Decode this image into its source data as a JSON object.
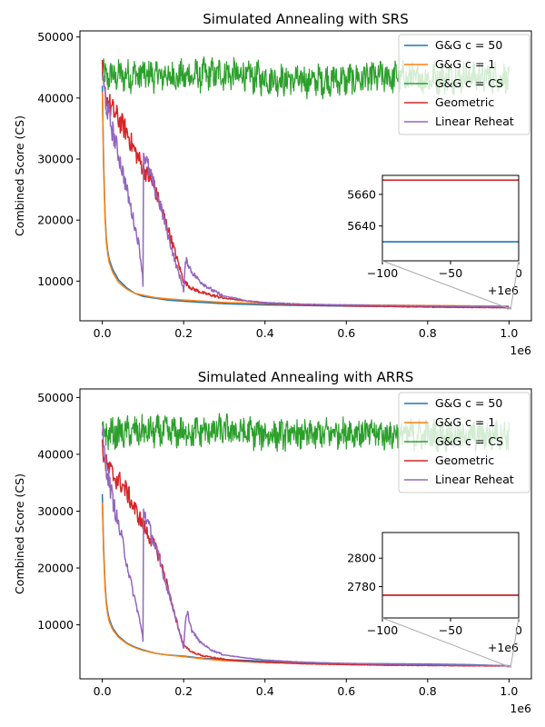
{
  "colors": {
    "gg50": "#1f77b4",
    "gg1": "#ff7f0e",
    "ggcs": "#2ca02c",
    "geometric": "#d62728",
    "linear_reheat": "#9467bd"
  },
  "chart_data": [
    {
      "type": "line",
      "title": "Simulated Annealing with SRS",
      "xlabel": "",
      "ylabel": "Combined Score (CS)",
      "x_offset_label": "1e6",
      "xlim": [
        -0.055,
        1.055
      ],
      "ylim": [
        3500,
        51000
      ],
      "xticks": [
        0.0,
        0.2,
        0.4,
        0.6,
        0.8,
        1.0
      ],
      "xtick_labels": [
        "0.0",
        "0.2",
        "0.4",
        "0.6",
        "0.8",
        "1.0"
      ],
      "yticks": [
        10000,
        20000,
        30000,
        40000,
        50000
      ],
      "ytick_labels": [
        "10000",
        "20000",
        "30000",
        "40000",
        "50000"
      ],
      "legend": {
        "placement": "top-right",
        "entries": [
          "G&G c = 50",
          "G&G c = 1",
          "G&G c = CS",
          "Geometric",
          "Linear Reheat"
        ]
      },
      "series": [
        {
          "name": "G&G c = 50",
          "x": [
            0.0,
            0.003,
            0.008,
            0.015,
            0.025,
            0.04,
            0.06,
            0.08,
            0.1,
            0.13,
            0.16,
            0.2,
            0.25,
            0.3,
            0.4,
            0.5,
            0.6,
            0.7,
            0.8,
            0.9,
            1.0
          ],
          "y": [
            42000,
            30000,
            18000,
            14000,
            12000,
            10200,
            8900,
            8000,
            7500,
            7200,
            6900,
            6700,
            6500,
            6300,
            6100,
            6000,
            5900,
            5850,
            5800,
            5750,
            5630
          ]
        },
        {
          "name": "G&G c = 1",
          "x": [
            0.0,
            0.003,
            0.008,
            0.015,
            0.025,
            0.04,
            0.06,
            0.08,
            0.1,
            0.13,
            0.16,
            0.2,
            0.25,
            0.3,
            0.4,
            0.5,
            0.6,
            0.7,
            0.8,
            0.9,
            1.0
          ],
          "y": [
            41000,
            29000,
            17500,
            13500,
            11500,
            9800,
            8700,
            8000,
            7700,
            7300,
            7100,
            6900,
            6700,
            6500,
            6300,
            6150,
            6100,
            6050,
            6000,
            5950,
            5900
          ]
        },
        {
          "name": "G&G c = CS",
          "x": [
            0.0,
            0.1,
            0.2,
            0.3,
            0.4,
            0.5,
            0.6,
            0.7,
            0.8,
            0.9,
            1.0
          ],
          "y": [
            43500,
            43800,
            43500,
            44000,
            43200,
            42800,
            43000,
            43500,
            43200,
            43600,
            43200
          ],
          "band": 3200
        },
        {
          "name": "Geometric",
          "x": [
            0.0,
            0.003,
            0.01,
            0.02,
            0.03,
            0.045,
            0.06,
            0.075,
            0.09,
            0.1,
            0.12,
            0.14,
            0.16,
            0.18,
            0.2,
            0.22,
            0.25,
            0.3,
            0.35,
            0.4,
            0.5,
            0.6,
            0.7,
            0.8,
            0.9,
            1.0
          ],
          "y": [
            44000,
            41000,
            40000,
            38500,
            37500,
            36000,
            34500,
            32000,
            30000,
            28500,
            26500,
            23000,
            19000,
            14500,
            10000,
            8800,
            8000,
            7200,
            6800,
            6400,
            6100,
            5950,
            5850,
            5750,
            5700,
            5660
          ]
        },
        {
          "name": "Linear Reheat",
          "x": [
            0.0,
            0.003,
            0.01,
            0.02,
            0.035,
            0.05,
            0.07,
            0.09,
            0.099,
            0.1,
            0.101,
            0.105,
            0.12,
            0.14,
            0.16,
            0.18,
            0.199,
            0.2,
            0.205,
            0.21,
            0.22,
            0.24,
            0.27,
            0.3,
            0.33,
            0.35,
            0.4,
            0.5,
            0.6,
            0.7,
            0.8,
            0.9,
            1.0
          ],
          "y": [
            45000,
            42000,
            39000,
            36000,
            32000,
            28000,
            22000,
            16000,
            11000,
            9500,
            31000,
            30500,
            27000,
            23000,
            18000,
            13000,
            9000,
            8200,
            13500,
            13000,
            11500,
            10000,
            8500,
            7500,
            7200,
            6800,
            6500,
            6200,
            6100,
            6000,
            5950,
            5850,
            5800
          ]
        }
      ],
      "inset": {
        "xlim": [
          -100,
          0
        ],
        "ylim": [
          5618,
          5672
        ],
        "xticks": [
          -100,
          -50,
          0
        ],
        "xtick_labels": [
          "−100",
          "−50",
          "0"
        ],
        "yticks": [
          5640,
          5660
        ],
        "ytick_labels": [
          "5640",
          "5660"
        ],
        "x_offset_label": "+1e6",
        "lines": [
          {
            "series": "G&G c = 50",
            "y": 5630
          },
          {
            "series": "Geometric",
            "y": 5669
          }
        ]
      }
    },
    {
      "type": "line",
      "title": "Simulated Annealing with ARRS",
      "xlabel": "",
      "ylabel": "Combined Score (CS)",
      "x_offset_label": "1e6",
      "xlim": [
        -0.055,
        1.055
      ],
      "ylim": [
        500,
        51500
      ],
      "xticks": [
        0.0,
        0.2,
        0.4,
        0.6,
        0.8,
        1.0
      ],
      "xtick_labels": [
        "0.0",
        "0.2",
        "0.4",
        "0.6",
        "0.8",
        "1.0"
      ],
      "yticks": [
        10000,
        20000,
        30000,
        40000,
        50000
      ],
      "ytick_labels": [
        "10000",
        "20000",
        "30000",
        "40000",
        "50000"
      ],
      "legend": {
        "placement": "top-right",
        "entries": [
          "G&G c = 50",
          "G&G c = 1",
          "G&G c = CS",
          "Geometric",
          "Linear Reheat"
        ]
      },
      "series": [
        {
          "name": "G&G c = 50",
          "x": [
            0.0,
            0.003,
            0.008,
            0.015,
            0.025,
            0.04,
            0.06,
            0.08,
            0.1,
            0.13,
            0.16,
            0.2,
            0.25,
            0.3,
            0.4,
            0.5,
            0.6,
            0.7,
            0.8,
            0.9,
            1.0
          ],
          "y": [
            33000,
            24000,
            15000,
            11500,
            9500,
            8000,
            6800,
            6100,
            5600,
            5000,
            4700,
            4500,
            4100,
            3900,
            3600,
            3400,
            3200,
            3150,
            3100,
            3000,
            2774
          ]
        },
        {
          "name": "G&G c = 1",
          "x": [
            0.0,
            0.003,
            0.008,
            0.015,
            0.025,
            0.04,
            0.06,
            0.08,
            0.1,
            0.13,
            0.16,
            0.2,
            0.25,
            0.3,
            0.4,
            0.5,
            0.6,
            0.7,
            0.8,
            0.9,
            1.0
          ],
          "y": [
            31500,
            23000,
            14500,
            11000,
            9200,
            7800,
            6700,
            6000,
            5500,
            5000,
            4700,
            4400,
            4000,
            3700,
            3400,
            3200,
            3000,
            2950,
            2900,
            2850,
            2780
          ]
        },
        {
          "name": "G&G c = CS",
          "x": [
            0.0,
            0.1,
            0.2,
            0.3,
            0.4,
            0.5,
            0.6,
            0.7,
            0.8,
            0.9,
            1.0
          ],
          "y": [
            43500,
            44000,
            43800,
            44200,
            43500,
            43300,
            44000,
            43500,
            43400,
            43200,
            43500
          ],
          "band": 3300
        },
        {
          "name": "Geometric",
          "x": [
            0.0,
            0.003,
            0.01,
            0.02,
            0.03,
            0.045,
            0.06,
            0.075,
            0.09,
            0.1,
            0.12,
            0.14,
            0.16,
            0.18,
            0.2,
            0.22,
            0.25,
            0.3,
            0.35,
            0.4,
            0.5,
            0.6,
            0.7,
            0.8,
            0.9,
            1.0
          ],
          "y": [
            43000,
            40000,
            38000,
            37000,
            36000,
            35000,
            33500,
            31000,
            29000,
            27500,
            25000,
            22000,
            17000,
            11000,
            6500,
            5200,
            4500,
            3900,
            3600,
            3400,
            3150,
            3000,
            2900,
            2850,
            2800,
            2774
          ]
        },
        {
          "name": "Linear Reheat",
          "x": [
            0.0,
            0.003,
            0.01,
            0.02,
            0.035,
            0.05,
            0.07,
            0.09,
            0.099,
            0.1,
            0.101,
            0.105,
            0.12,
            0.14,
            0.16,
            0.18,
            0.199,
            0.2,
            0.205,
            0.21,
            0.22,
            0.24,
            0.27,
            0.3,
            0.33,
            0.35,
            0.4,
            0.5,
            0.6,
            0.7,
            0.8,
            0.9,
            1.0
          ],
          "y": [
            44000,
            41000,
            38000,
            34000,
            29000,
            24500,
            17500,
            11500,
            8000,
            7200,
            30000,
            29500,
            26000,
            21500,
            16500,
            11500,
            6200,
            5800,
            11000,
            12000,
            9000,
            7000,
            5500,
            4700,
            4400,
            4200,
            3800,
            3400,
            3200,
            3100,
            3000,
            2900,
            2800
          ]
        }
      ],
      "inset": {
        "xlim": [
          -100,
          0
        ],
        "ylim": [
          2758,
          2818
        ],
        "xticks": [
          -100,
          -50,
          0
        ],
        "xtick_labels": [
          "−100",
          "−50",
          "0"
        ],
        "yticks": [
          2780,
          2800
        ],
        "ytick_labels": [
          "2780",
          "2800"
        ],
        "x_offset_label": "+1e6",
        "lines": [
          {
            "series": "G&G c = 50",
            "y": 2774
          },
          {
            "series": "Geometric",
            "y": 2774
          }
        ]
      }
    }
  ]
}
